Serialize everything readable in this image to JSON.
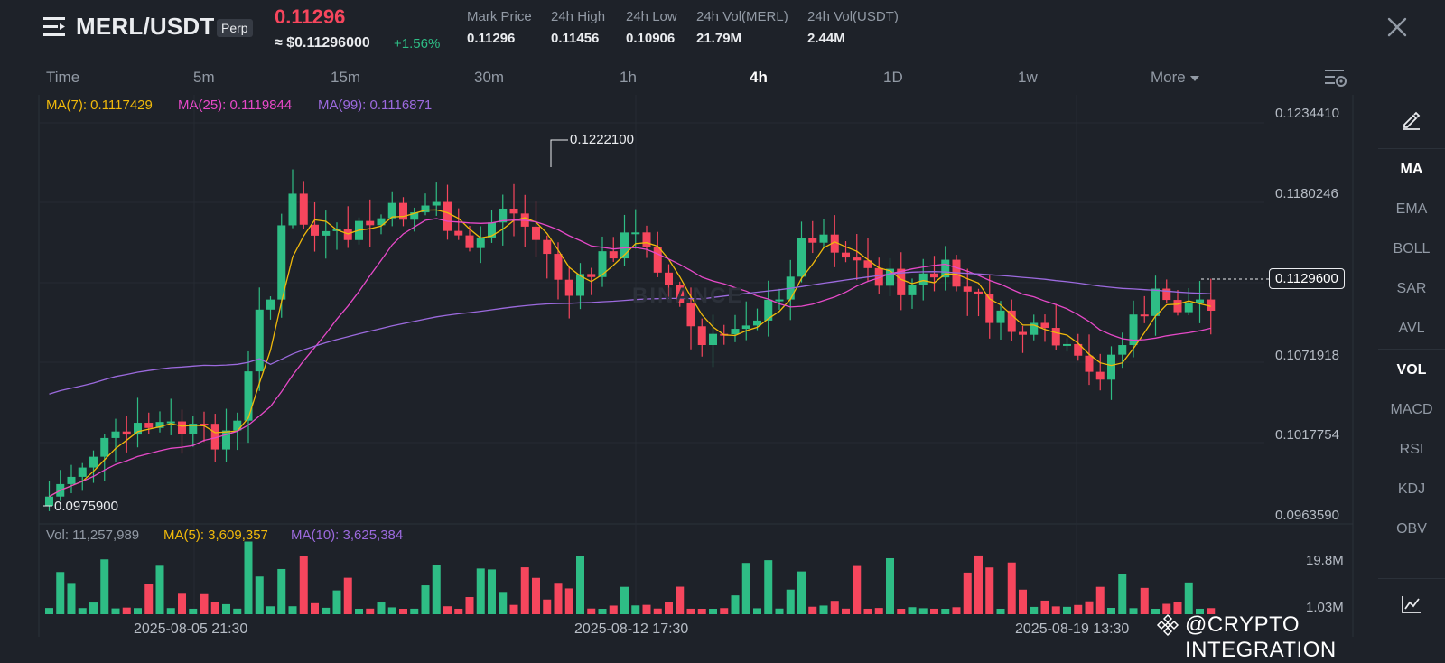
{
  "header": {
    "pair": "MERL/USDT",
    "contract_type": "Perp",
    "last_price": "0.11296",
    "approx_value": "≈ $0.11296000",
    "change": "+1.56%",
    "stats": [
      {
        "label": "Mark Price",
        "value": "0.11296"
      },
      {
        "label": "24h High",
        "value": "0.11456"
      },
      {
        "label": "24h Low",
        "value": "0.10906"
      },
      {
        "label": "24h Vol(MERL)",
        "value": "21.79M"
      },
      {
        "label": "24h Vol(USDT)",
        "value": "2.44M"
      }
    ]
  },
  "intervals": [
    "Time",
    "5m",
    "15m",
    "30m",
    "1h",
    "4h",
    "1D",
    "1w",
    "More"
  ],
  "active_interval": "4h",
  "ma_legend": {
    "ma7": "MA(7): 0.1117429",
    "ma25": "MA(25): 0.1119844",
    "ma99": "MA(99): 0.1116871"
  },
  "volume_legend": {
    "vol": "Vol: 11,257,989",
    "ma5": "MA(5): 3,609,357",
    "ma10": "MA(10): 3,625,384"
  },
  "indicators": [
    "MA",
    "EMA",
    "BOLL",
    "SAR",
    "AVL",
    "VOL",
    "MACD",
    "RSI",
    "KDJ",
    "OBV"
  ],
  "active_indicators": [
    "MA",
    "VOL"
  ],
  "price_axis": [
    "0.1234410",
    "0.1180246",
    "0.1071918",
    "0.1017754",
    "0.0963590"
  ],
  "current_price_tag": "0.1129600",
  "high_marker": "0.1222100",
  "low_marker": "0.0975900",
  "volume_axis": [
    "19.8M",
    "1.03M"
  ],
  "date_axis": [
    "2025-08-05 21:30",
    "2025-08-12 17:30",
    "2025-08-19 13:30"
  ],
  "chart_watermark": "BINANCE",
  "watermark": "@CRYPTO INTEGRATION",
  "colors": {
    "background": "#1e2229",
    "up": "#2ebd85",
    "down": "#f6465d",
    "ma7": "#f0b90b",
    "ma25": "#e649c8",
    "ma99": "#9c6ade"
  },
  "icons": [
    "menu-icon",
    "close-icon",
    "chart-settings-icon",
    "draw-pen-icon",
    "line-chart-icon",
    "binance-logo-icon"
  ]
}
